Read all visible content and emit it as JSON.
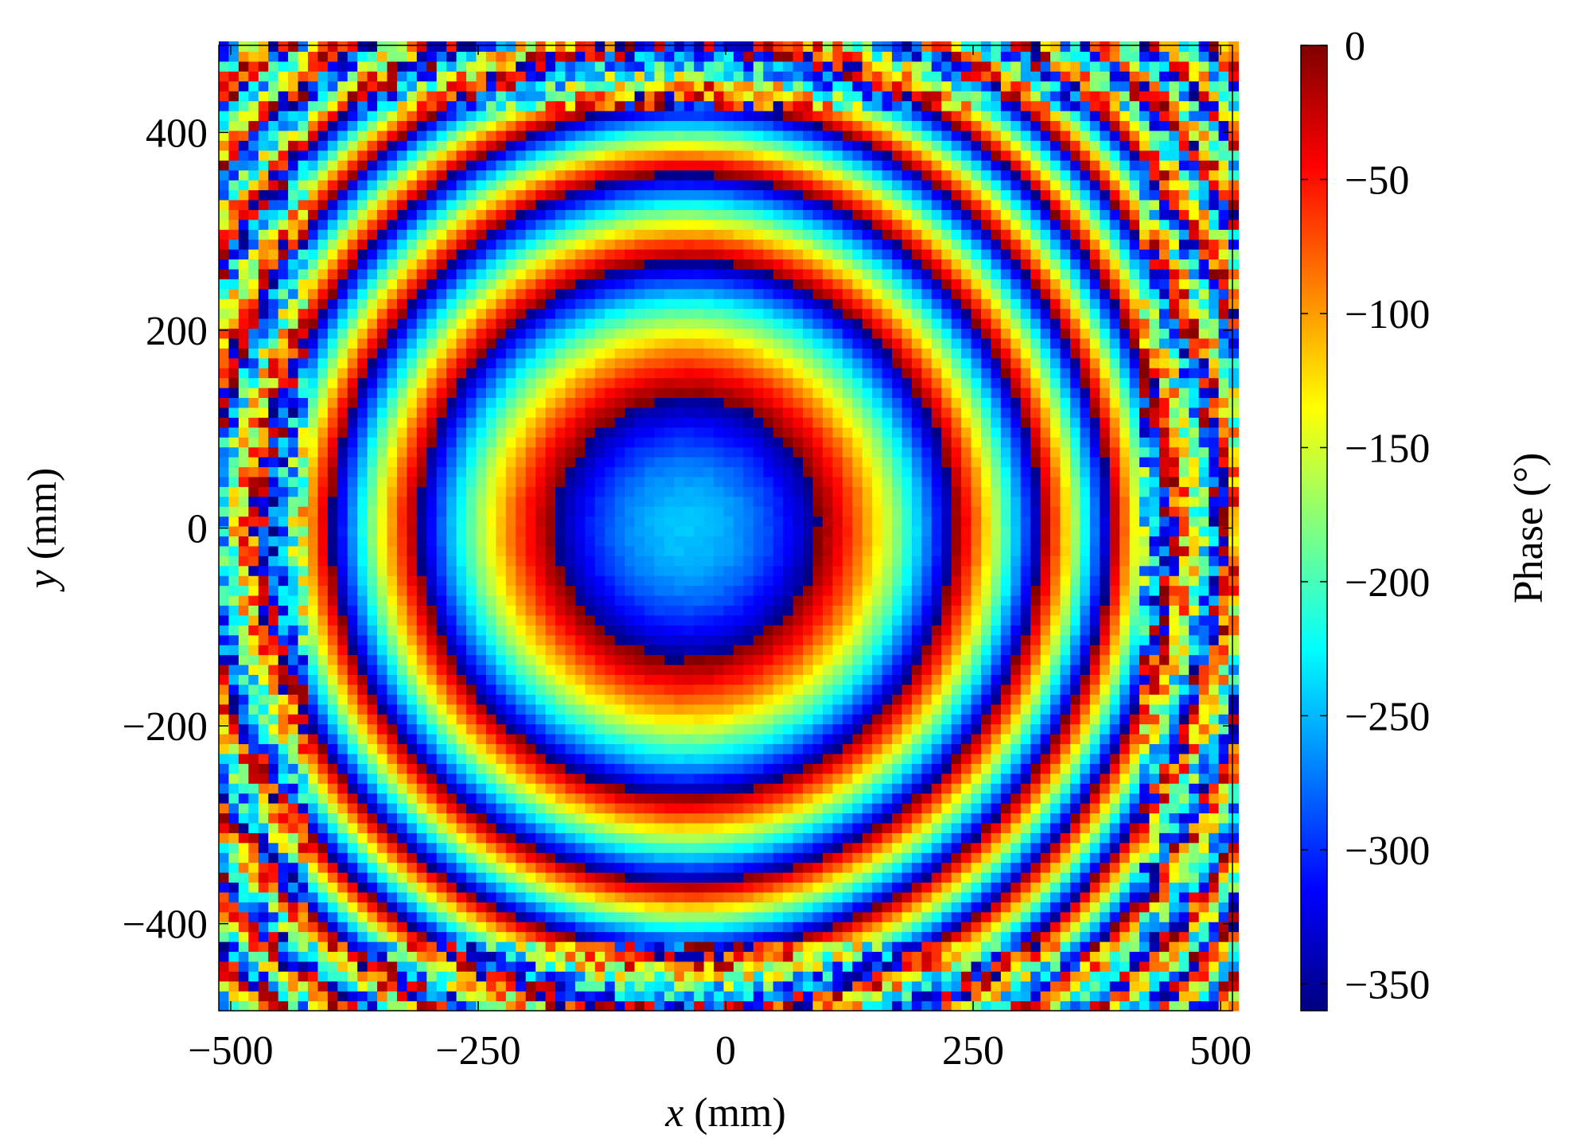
{
  "chart_data": {
    "type": "heatmap",
    "title": "",
    "xlabel": {
      "var": "x",
      "unit": " (mm)"
    },
    "ylabel": {
      "var": "y",
      "unit": " (mm)"
    },
    "xlim": [
      -512,
      512
    ],
    "ylim": [
      -488,
      488
    ],
    "xticks": [
      -500,
      -250,
      0,
      250,
      500
    ],
    "xtick_labels": [
      "−500",
      "−250",
      "0",
      "250",
      "500"
    ],
    "yticks": [
      -400,
      -200,
      0,
      200,
      400
    ],
    "ytick_labels": [
      "−400",
      "−200",
      "0",
      "200",
      "400"
    ],
    "grid": false,
    "colormap": "jet",
    "colorbar": {
      "label": "Phase (°)",
      "range": [
        -360,
        0
      ],
      "ticks": [
        0,
        -50,
        -100,
        -150,
        -200,
        -250,
        -300,
        -350
      ],
      "tick_labels": [
        "0",
        "−50",
        "−100",
        "−150",
        "−200",
        "−250",
        "−300",
        "−350"
      ]
    },
    "field": {
      "description_of_values": "wrapped phase (deg) of a circular fringe pattern, one cell per 10 mm",
      "grid_step": 10,
      "center": [
        -40,
        0
      ],
      "center_phase": -245,
      "phase_per_mm2": -0.0065,
      "wrap_range": [
        -360,
        0
      ],
      "noise": 40
    }
  }
}
